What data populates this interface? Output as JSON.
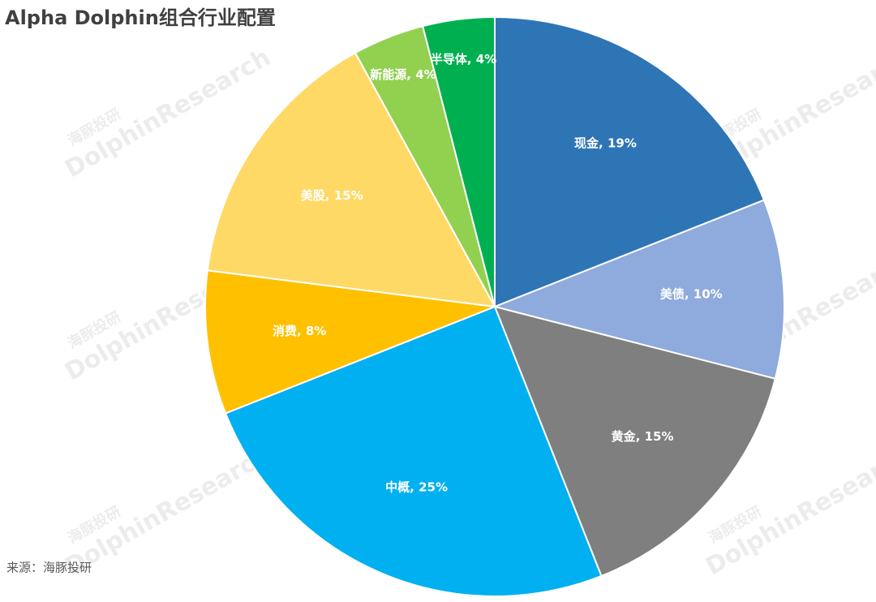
{
  "chart_data": {
    "type": "pie",
    "title": "Alpha Dolphin组合行业配置",
    "values": [
      19,
      10,
      15,
      25,
      8,
      15,
      4,
      4
    ],
    "value_labels": [
      "现金, 19%",
      "美债, 10%",
      "黄金, 15%",
      "中概, 25%",
      "消费, 8%",
      "美股, 15%",
      "新能源, 4%",
      "半导体, 4%"
    ],
    "colors": [
      "#2e75b6",
      "#8faadc",
      "#7f7f7f",
      "#00b0f0",
      "#ffc000",
      "#ffd966",
      "#92d050",
      "#00b050"
    ],
    "source": "来源：海豚投研",
    "watermark_cn": "海豚投研",
    "watermark_en": "DolphinResearch"
  }
}
